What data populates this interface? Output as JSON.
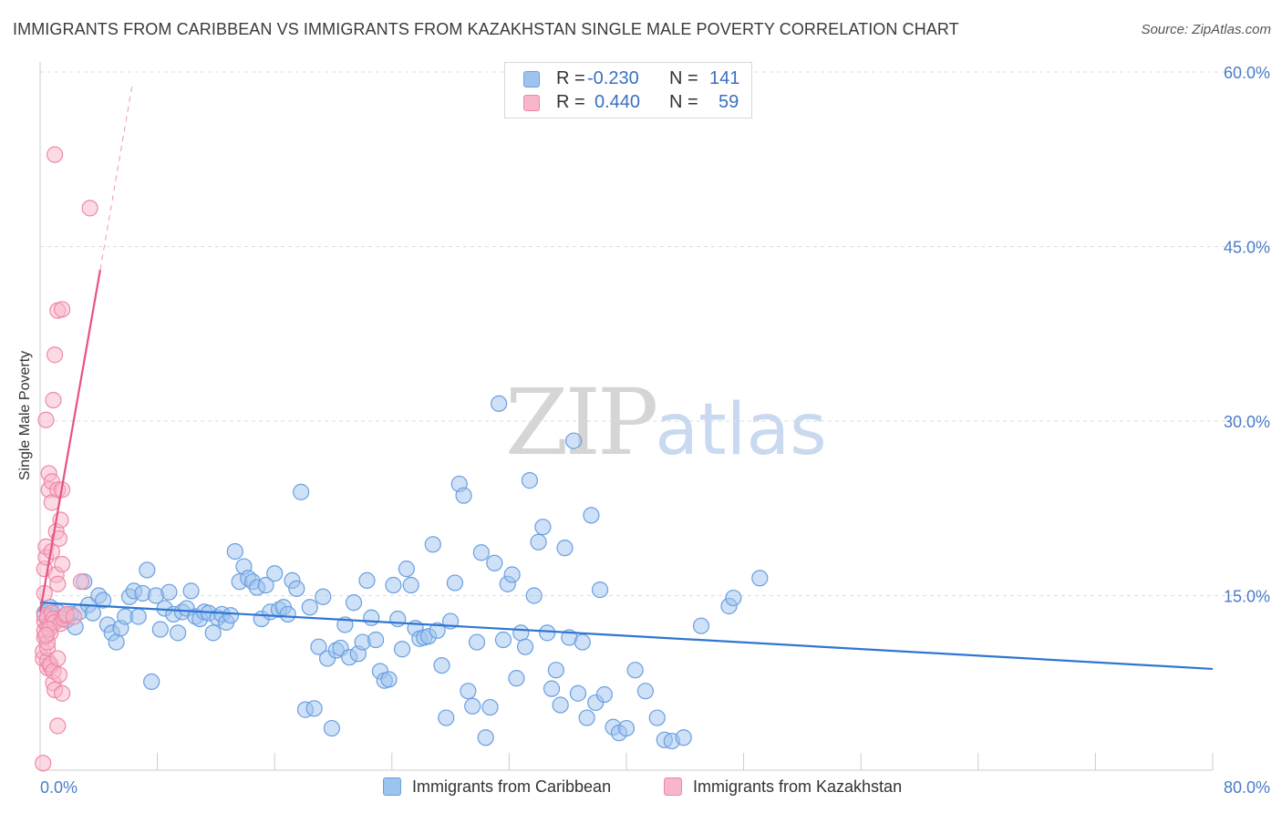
{
  "header": {
    "title": "IMMIGRANTS FROM CARIBBEAN VS IMMIGRANTS FROM KAZAKHSTAN SINGLE MALE POVERTY CORRELATION CHART",
    "source": "Source: ZipAtlas.com"
  },
  "watermark": {
    "zip": "ZIP",
    "atlas": "atlas"
  },
  "legend": {
    "r_label": "R =",
    "n_label": "N =",
    "rows": [
      {
        "r": "-0.230",
        "n": "141",
        "color": "#9dc3ef"
      },
      {
        "r": "0.440",
        "n": "59",
        "color": "#f7b6c9"
      }
    ]
  },
  "chart_data": {
    "type": "scatter",
    "ylabel": "Single Male Poverty",
    "xlim": [
      0,
      80
    ],
    "ylim": [
      0,
      60
    ],
    "x_tick_labels": [
      "0.0%",
      "80.0%"
    ],
    "y_ticks": [
      {
        "value": 15,
        "label": "15.0%"
      },
      {
        "value": 30,
        "label": "30.0%"
      },
      {
        "value": 45,
        "label": "45.0%"
      },
      {
        "value": 60,
        "label": "60.0%"
      }
    ],
    "grid": true,
    "legend_position": "top-center",
    "series": [
      {
        "name": "Immigrants from Caribbean",
        "color": "#9dc3ef",
        "stroke": "#6a9fe0",
        "trend_color": "#2f76d2",
        "trend": {
          "x": [
            0,
            80
          ],
          "y": [
            14.4,
            8.7
          ]
        },
        "points": [
          [
            0.3,
            13.5
          ],
          [
            0.5,
            13.0
          ],
          [
            0.6,
            12.5
          ],
          [
            0.7,
            14.0
          ],
          [
            0.8,
            13.2
          ],
          [
            1.0,
            12.8
          ],
          [
            1.2,
            13.6
          ],
          [
            1.5,
            13.1
          ],
          [
            1.8,
            12.9
          ],
          [
            2.1,
            13.4
          ],
          [
            2.4,
            12.3
          ],
          [
            2.7,
            13.6
          ],
          [
            3.0,
            16.2
          ],
          [
            3.3,
            14.2
          ],
          [
            3.6,
            13.5
          ],
          [
            4.0,
            15.0
          ],
          [
            4.3,
            14.6
          ],
          [
            4.6,
            12.5
          ],
          [
            4.9,
            11.8
          ],
          [
            5.2,
            11.0
          ],
          [
            5.5,
            12.2
          ],
          [
            5.8,
            13.2
          ],
          [
            6.1,
            14.9
          ],
          [
            6.4,
            15.4
          ],
          [
            6.7,
            13.2
          ],
          [
            7.0,
            15.2
          ],
          [
            7.3,
            17.2
          ],
          [
            7.6,
            7.6
          ],
          [
            7.9,
            15.0
          ],
          [
            8.2,
            12.1
          ],
          [
            8.5,
            13.9
          ],
          [
            8.8,
            15.3
          ],
          [
            9.1,
            13.4
          ],
          [
            9.4,
            11.8
          ],
          [
            9.7,
            13.6
          ],
          [
            10.0,
            13.9
          ],
          [
            10.3,
            15.4
          ],
          [
            10.6,
            13.2
          ],
          [
            10.9,
            13.0
          ],
          [
            11.2,
            13.6
          ],
          [
            11.5,
            13.5
          ],
          [
            11.8,
            11.8
          ],
          [
            12.1,
            13.1
          ],
          [
            12.4,
            13.4
          ],
          [
            12.7,
            12.7
          ],
          [
            13.0,
            13.3
          ],
          [
            13.3,
            18.8
          ],
          [
            13.6,
            16.2
          ],
          [
            13.9,
            17.5
          ],
          [
            14.2,
            16.5
          ],
          [
            14.5,
            16.2
          ],
          [
            14.8,
            15.7
          ],
          [
            15.1,
            13.0
          ],
          [
            15.4,
            15.9
          ],
          [
            15.7,
            13.6
          ],
          [
            16.0,
            16.9
          ],
          [
            16.3,
            13.8
          ],
          [
            16.6,
            14.0
          ],
          [
            16.9,
            13.4
          ],
          [
            17.2,
            16.3
          ],
          [
            17.5,
            15.6
          ],
          [
            17.8,
            23.9
          ],
          [
            18.1,
            5.2
          ],
          [
            18.4,
            14.0
          ],
          [
            18.7,
            5.3
          ],
          [
            19.0,
            10.6
          ],
          [
            19.3,
            14.9
          ],
          [
            19.6,
            9.6
          ],
          [
            19.9,
            3.6
          ],
          [
            20.2,
            10.3
          ],
          [
            20.5,
            10.5
          ],
          [
            20.8,
            12.5
          ],
          [
            21.1,
            9.7
          ],
          [
            21.4,
            14.4
          ],
          [
            21.7,
            10.0
          ],
          [
            22.0,
            11.0
          ],
          [
            22.3,
            16.3
          ],
          [
            22.6,
            13.1
          ],
          [
            22.9,
            11.2
          ],
          [
            23.2,
            8.5
          ],
          [
            23.5,
            7.7
          ],
          [
            23.8,
            7.8
          ],
          [
            24.1,
            15.9
          ],
          [
            24.4,
            13.0
          ],
          [
            24.7,
            10.4
          ],
          [
            25.0,
            17.3
          ],
          [
            25.3,
            15.9
          ],
          [
            25.6,
            12.2
          ],
          [
            25.9,
            11.3
          ],
          [
            26.2,
            11.4
          ],
          [
            26.5,
            11.5
          ],
          [
            26.8,
            19.4
          ],
          [
            27.1,
            12.0
          ],
          [
            27.4,
            9.0
          ],
          [
            27.7,
            4.5
          ],
          [
            28.0,
            12.8
          ],
          [
            28.3,
            16.1
          ],
          [
            28.6,
            24.6
          ],
          [
            28.9,
            23.6
          ],
          [
            29.2,
            6.8
          ],
          [
            29.5,
            5.5
          ],
          [
            29.8,
            11.0
          ],
          [
            30.1,
            18.7
          ],
          [
            30.4,
            2.8
          ],
          [
            30.7,
            5.4
          ],
          [
            31.0,
            17.8
          ],
          [
            31.3,
            31.5
          ],
          [
            31.6,
            11.2
          ],
          [
            31.9,
            16.0
          ],
          [
            32.2,
            16.8
          ],
          [
            32.5,
            7.9
          ],
          [
            32.8,
            11.8
          ],
          [
            33.1,
            10.6
          ],
          [
            33.4,
            24.9
          ],
          [
            33.7,
            15.0
          ],
          [
            34.0,
            19.6
          ],
          [
            34.3,
            20.9
          ],
          [
            34.6,
            11.8
          ],
          [
            34.9,
            7.0
          ],
          [
            35.2,
            8.6
          ],
          [
            35.5,
            5.6
          ],
          [
            35.8,
            19.1
          ],
          [
            36.1,
            11.4
          ],
          [
            36.4,
            28.3
          ],
          [
            36.7,
            6.6
          ],
          [
            37.0,
            11.0
          ],
          [
            37.3,
            4.5
          ],
          [
            37.6,
            21.9
          ],
          [
            37.9,
            5.8
          ],
          [
            38.2,
            15.5
          ],
          [
            38.5,
            6.5
          ],
          [
            39.1,
            3.7
          ],
          [
            39.5,
            3.2
          ],
          [
            40.0,
            3.6
          ],
          [
            40.6,
            8.6
          ],
          [
            41.3,
            6.8
          ],
          [
            42.1,
            4.5
          ],
          [
            42.6,
            2.6
          ],
          [
            43.1,
            2.5
          ],
          [
            43.9,
            2.8
          ],
          [
            45.1,
            12.4
          ],
          [
            47.0,
            14.1
          ],
          [
            47.3,
            14.8
          ],
          [
            49.1,
            16.5
          ]
        ]
      },
      {
        "name": "Immigrants from Kazakhstan",
        "color": "#f7b6c9",
        "stroke": "#ef88a6",
        "trend_color": "#e8527f",
        "trend": {
          "x": [
            0,
            4.1
          ],
          "y": [
            13.6,
            43.0
          ],
          "dashed_to": [
            6.3,
            59.0
          ]
        },
        "points": [
          [
            0.2,
            0.6
          ],
          [
            0.2,
            9.6
          ],
          [
            0.2,
            10.2
          ],
          [
            0.3,
            11.4
          ],
          [
            0.3,
            12.0
          ],
          [
            0.3,
            12.8
          ],
          [
            0.3,
            13.3
          ],
          [
            0.3,
            15.2
          ],
          [
            0.3,
            17.3
          ],
          [
            0.4,
            18.3
          ],
          [
            0.4,
            19.2
          ],
          [
            0.4,
            30.1
          ],
          [
            0.5,
            8.8
          ],
          [
            0.5,
            9.4
          ],
          [
            0.5,
            10.5
          ],
          [
            0.5,
            11.0
          ],
          [
            0.5,
            12.3
          ],
          [
            0.5,
            13.1
          ],
          [
            0.6,
            24.1
          ],
          [
            0.6,
            25.5
          ],
          [
            0.7,
            8.9
          ],
          [
            0.7,
            9.1
          ],
          [
            0.7,
            11.8
          ],
          [
            0.7,
            12.6
          ],
          [
            0.8,
            13.5
          ],
          [
            0.8,
            18.8
          ],
          [
            0.8,
            23.0
          ],
          [
            0.8,
            24.8
          ],
          [
            0.9,
            7.5
          ],
          [
            0.9,
            8.5
          ],
          [
            0.9,
            13.0
          ],
          [
            0.9,
            31.8
          ],
          [
            1.0,
            6.9
          ],
          [
            1.0,
            12.7
          ],
          [
            1.0,
            35.7
          ],
          [
            1.0,
            52.9
          ],
          [
            1.1,
            16.8
          ],
          [
            1.1,
            20.5
          ],
          [
            1.2,
            3.8
          ],
          [
            1.2,
            9.6
          ],
          [
            1.2,
            16.0
          ],
          [
            1.2,
            24.1
          ],
          [
            1.2,
            39.5
          ],
          [
            1.3,
            8.2
          ],
          [
            1.3,
            19.9
          ],
          [
            1.4,
            12.6
          ],
          [
            1.4,
            21.5
          ],
          [
            1.5,
            6.6
          ],
          [
            1.5,
            17.7
          ],
          [
            1.5,
            24.1
          ],
          [
            1.5,
            39.6
          ],
          [
            1.6,
            13.0
          ],
          [
            1.7,
            13.3
          ],
          [
            1.8,
            13.4
          ],
          [
            2.3,
            13.2
          ],
          [
            2.8,
            16.2
          ],
          [
            3.4,
            48.3
          ],
          [
            0.6,
            12.1
          ],
          [
            0.4,
            11.6
          ]
        ]
      }
    ]
  }
}
